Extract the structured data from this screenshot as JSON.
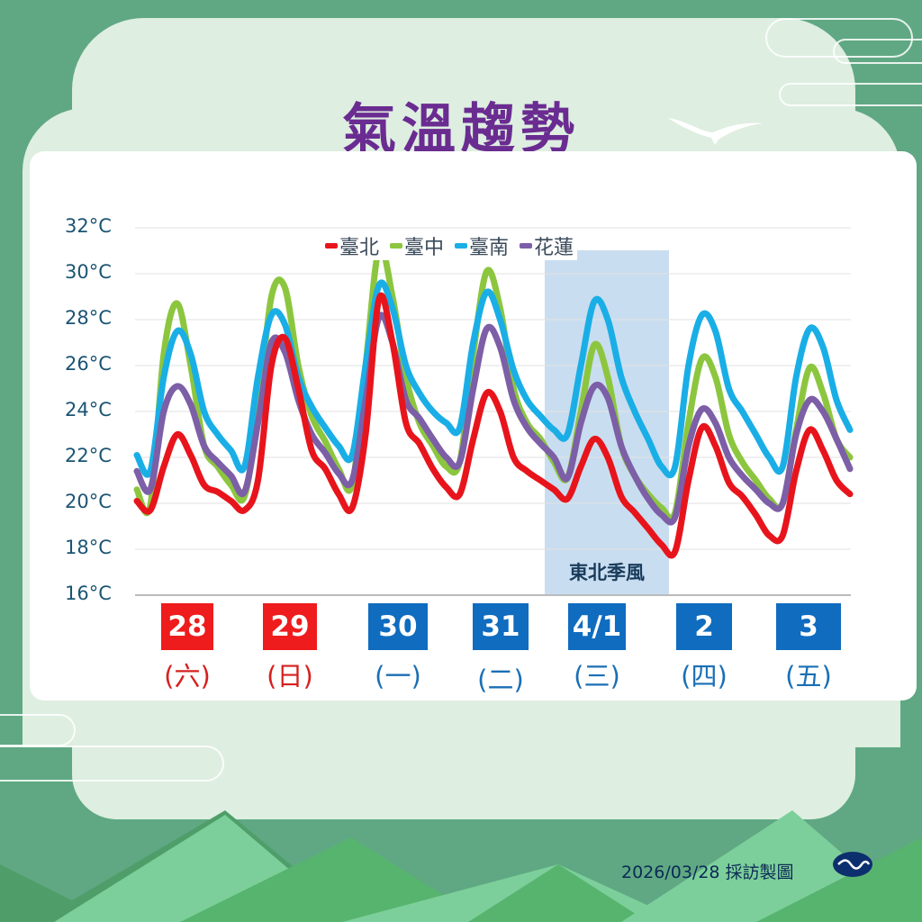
{
  "title": "氣溫趨勢",
  "legend": [
    {
      "label": "臺北",
      "color": "#e8141c"
    },
    {
      "label": "臺中",
      "color": "#8cc63f"
    },
    {
      "label": "臺南",
      "color": "#1aaee6"
    },
    {
      "label": "花蓮",
      "color": "#7c5fa6"
    }
  ],
  "y_axis": {
    "ticks": [
      "32°C",
      "30°C",
      "28°C",
      "26°C",
      "24°C",
      "22°C",
      "20°C",
      "18°C",
      "16°C"
    ]
  },
  "annotation": {
    "label": "東北季風"
  },
  "dates": [
    {
      "date": "28",
      "weekday": "(六)",
      "color": "#ee1c1c",
      "text_color": "#d6201f"
    },
    {
      "date": "29",
      "weekday": "(日)",
      "color": "#ee1c1c",
      "text_color": "#d6201f"
    },
    {
      "date": "30",
      "weekday": "(一)",
      "color": "#0f6cbf",
      "text_color": "#1a6fb5"
    },
    {
      "date": "31",
      "weekday": "(二)",
      "color": "#0f6cbf",
      "text_color": "#1a6fb5"
    },
    {
      "date": "4/1",
      "weekday": "(三)",
      "color": "#0f6cbf",
      "text_color": "#1a6fb5"
    },
    {
      "date": "2",
      "weekday": "(四)",
      "color": "#0f6cbf",
      "text_color": "#1a6fb5"
    },
    {
      "date": "3",
      "weekday": "(五)",
      "color": "#0f6cbf",
      "text_color": "#1a6fb5"
    }
  ],
  "footer": {
    "text": "2026/03/28 採訪製圖"
  },
  "chart_data": {
    "type": "line",
    "title": "氣溫趨勢",
    "xlabel": "",
    "ylabel": "",
    "ylim": [
      16,
      32
    ],
    "yticks": [
      16,
      18,
      20,
      22,
      24,
      26,
      28,
      30,
      32
    ],
    "grid": true,
    "legend_position": "top-center",
    "categories": [
      "28 (六)",
      "29 (日)",
      "30 (一)",
      "31 (二)",
      "4/1 (三)",
      "2 (四)",
      "3 (五)"
    ],
    "x_interval_hours": 3,
    "annotations": [
      {
        "label": "東北季風",
        "span": [
          "4/1 00h",
          "4/2 03h"
        ],
        "type": "shaded-region"
      }
    ],
    "series": [
      {
        "name": "臺北",
        "color": "#e8141c",
        "values": [
          20.1,
          19.7,
          21.6,
          23.0,
          22.1,
          20.8,
          20.5,
          20.1,
          19.7,
          21.0,
          26.0,
          27.2,
          25.0,
          22.3,
          21.5,
          20.4,
          19.8,
          23.0,
          28.9,
          27.0,
          23.5,
          22.6,
          21.5,
          20.7,
          20.4,
          22.8,
          24.8,
          24.0,
          22.0,
          21.4,
          21.0,
          20.6,
          20.2,
          21.6,
          22.8,
          22.0,
          20.3,
          19.6,
          18.9,
          18.2,
          17.9,
          21.0,
          23.3,
          22.5,
          20.9,
          20.3,
          19.5,
          18.6,
          18.6,
          21.4,
          23.2,
          22.3,
          21.0,
          20.4
        ]
      },
      {
        "name": "臺中",
        "color": "#8cc63f",
        "values": [
          20.6,
          19.9,
          26.5,
          28.7,
          26.0,
          22.5,
          21.6,
          20.8,
          20.3,
          24.0,
          29.0,
          29.4,
          26.0,
          23.8,
          22.7,
          21.5,
          20.8,
          26.0,
          31.1,
          29.0,
          25.5,
          23.5,
          22.5,
          21.6,
          21.8,
          26.5,
          30.1,
          28.5,
          25.0,
          23.5,
          22.8,
          21.8,
          21.1,
          24.0,
          26.9,
          25.5,
          22.5,
          21.2,
          20.4,
          19.8,
          19.6,
          23.5,
          26.3,
          25.5,
          23.0,
          21.8,
          21.0,
          20.2,
          20.0,
          23.2,
          25.9,
          24.8,
          22.8,
          22.0
        ]
      },
      {
        "name": "臺南",
        "color": "#1aaee6",
        "values": [
          22.1,
          21.4,
          25.5,
          27.5,
          26.5,
          24.0,
          23.0,
          22.3,
          21.6,
          25.5,
          28.2,
          27.8,
          25.5,
          24.2,
          23.3,
          22.5,
          22.1,
          26.0,
          29.5,
          28.5,
          26.0,
          24.8,
          24.0,
          23.5,
          23.3,
          27.0,
          29.2,
          28.0,
          25.8,
          24.5,
          23.8,
          23.2,
          23.0,
          26.0,
          28.8,
          28.0,
          25.5,
          24.0,
          22.8,
          21.6,
          21.6,
          26.0,
          28.2,
          27.5,
          25.0,
          24.0,
          23.0,
          22.0,
          21.6,
          25.5,
          27.6,
          26.8,
          24.5,
          23.2
        ]
      },
      {
        "name": "花蓮",
        "color": "#7c5fa6",
        "values": [
          21.4,
          20.6,
          24.0,
          25.1,
          24.3,
          22.5,
          21.8,
          21.2,
          20.5,
          23.5,
          27.0,
          26.6,
          24.5,
          23.0,
          22.2,
          21.3,
          21.0,
          24.5,
          28.1,
          27.0,
          24.5,
          23.7,
          22.8,
          22.0,
          21.8,
          25.0,
          27.6,
          26.8,
          24.5,
          23.3,
          22.6,
          22.0,
          21.1,
          23.5,
          25.1,
          24.6,
          22.5,
          21.2,
          20.2,
          19.5,
          19.4,
          22.5,
          24.1,
          23.5,
          22.0,
          21.2,
          20.6,
          20.0,
          20.0,
          23.0,
          24.5,
          24.0,
          22.8,
          21.5
        ]
      }
    ]
  }
}
